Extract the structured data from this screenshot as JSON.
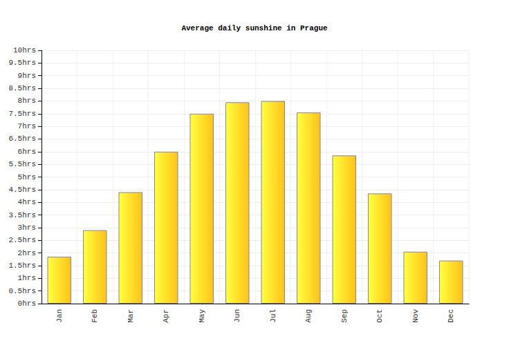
{
  "chart_data": {
    "type": "bar",
    "title": "Average daily sunshine in Prague",
    "categories": [
      "Jan",
      "Feb",
      "Mar",
      "Apr",
      "May",
      "Jun",
      "Jul",
      "Aug",
      "Sep",
      "Oct",
      "Nov",
      "Dec"
    ],
    "values": [
      1.85,
      2.9,
      4.4,
      6.0,
      7.5,
      7.95,
      8.0,
      7.55,
      5.85,
      4.35,
      2.05,
      1.7
    ],
    "color": "#ffe02a",
    "ylim": [
      0,
      10
    ],
    "yticks": [
      {
        "value": 0,
        "label": "0hrs"
      },
      {
        "value": 0.5,
        "label": "0.5hrs"
      },
      {
        "value": 1,
        "label": "1hrs"
      },
      {
        "value": 1.5,
        "label": "1.5hrs"
      },
      {
        "value": 2,
        "label": "2hrs"
      },
      {
        "value": 2.5,
        "label": "2.5hrs"
      },
      {
        "value": 3,
        "label": "3hrs"
      },
      {
        "value": 3.5,
        "label": "3.5hrs"
      },
      {
        "value": 4,
        "label": "4hrs"
      },
      {
        "value": 4.5,
        "label": "4.5hrs"
      },
      {
        "value": 5,
        "label": "5hrs"
      },
      {
        "value": 5.5,
        "label": "5.5hrs"
      },
      {
        "value": 6,
        "label": "6hrs"
      },
      {
        "value": 6.5,
        "label": "6.5hrs"
      },
      {
        "value": 7,
        "label": "7hrs"
      },
      {
        "value": 7.5,
        "label": "7.5hrs"
      },
      {
        "value": 8,
        "label": "8hrs"
      },
      {
        "value": 8.5,
        "label": "8.5hrs"
      },
      {
        "value": 9,
        "label": "9hrs"
      },
      {
        "value": 9.5,
        "label": "9.5hrs"
      },
      {
        "value": 10,
        "label": "10hrs"
      }
    ],
    "grid": true
  }
}
